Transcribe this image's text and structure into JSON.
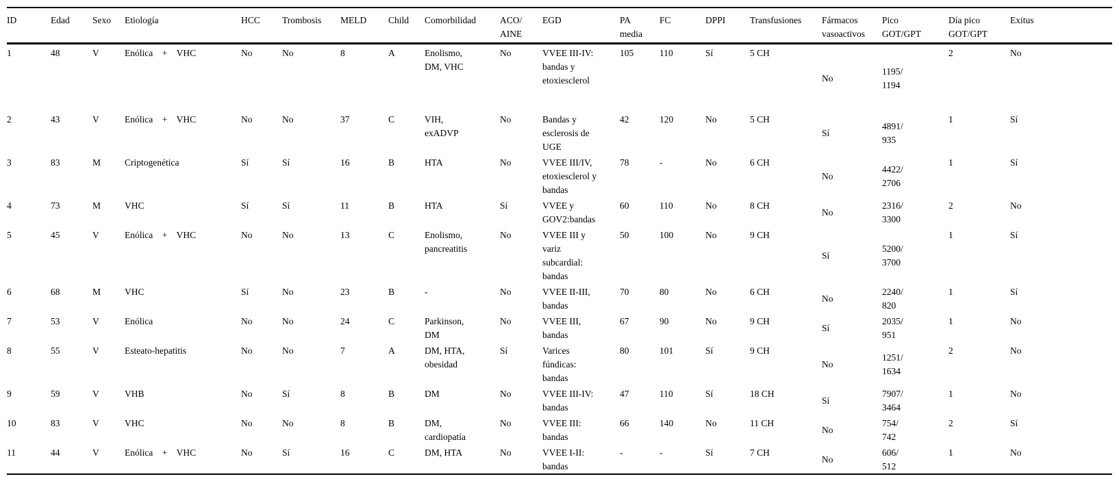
{
  "table": {
    "columns": [
      {
        "key": "id",
        "label": "ID"
      },
      {
        "key": "edad",
        "label": "Edad"
      },
      {
        "key": "sexo",
        "label": "Sexo"
      },
      {
        "key": "etiologia",
        "label": "Etiología"
      },
      {
        "key": "hcc",
        "label": "HCC"
      },
      {
        "key": "trombosis",
        "label": "Trombosis"
      },
      {
        "key": "meld",
        "label": "MELD"
      },
      {
        "key": "child",
        "label": "Child"
      },
      {
        "key": "comorbilidad",
        "label": "Comorbilidad"
      },
      {
        "key": "aco_aine",
        "label": "ACO/\nAINE"
      },
      {
        "key": "egd",
        "label": "EGD"
      },
      {
        "key": "pa_media",
        "label": "PA\nmedia"
      },
      {
        "key": "fc",
        "label": "FC"
      },
      {
        "key": "dppi",
        "label": "DPPI"
      },
      {
        "key": "transfusiones",
        "label": "Transfusiones"
      },
      {
        "key": "farmacos_vasoactivos",
        "label": "Fármacos\nvasoactivos"
      },
      {
        "key": "pico_got_gpt",
        "label": "Pico\nGOT/GPT"
      },
      {
        "key": "dia_pico_got_gpt",
        "label": "Día pico\nGOT/GPT"
      },
      {
        "key": "exitus",
        "label": "Exitus"
      }
    ],
    "rows": [
      [
        "1",
        "48",
        "V",
        "Enólica    +    VHC",
        "No",
        "No",
        "8",
        "A",
        "Enolismo,\nDM, VHC",
        "No",
        "VVEE III-IV:\nbandas y\netoxiesclerol",
        "105",
        "110",
        "Sí",
        "5 CH",
        "No",
        "1195/\n1194",
        "2",
        "No"
      ],
      [
        "2",
        "43",
        "V",
        "Enólica    +    VHC",
        "No",
        "No",
        "37",
        "C",
        "VIH,\nexADVP",
        "No",
        "Bandas y\nesclerosis de\nUGE",
        "42",
        "120",
        "No",
        "5 CH",
        "Sí",
        "4891/\n935",
        "1",
        "Sí"
      ],
      [
        "3",
        "83",
        "M",
        "Criptogenética",
        "Sí",
        "Sí",
        "16",
        "B",
        "HTA",
        "No",
        "VVEE III/IV,\netoxiesclerol y\nbandas",
        "78",
        "-",
        "No",
        "6 CH",
        "No",
        "4422/\n2706",
        "1",
        "Sí"
      ],
      [
        "4",
        "73",
        "M",
        "VHC",
        "Sí",
        "Sí",
        "11",
        "B",
        "HTA",
        "Sí",
        "VVEE y\nGOV2:bandas",
        "60",
        "110",
        "No",
        "8 CH",
        "No",
        "2316/\n3300",
        "2",
        "No"
      ],
      [
        "5",
        "45",
        "V",
        "Enólica    +    VHC",
        "No",
        "No",
        "13",
        "C",
        "Enolismo,\npancreatitis",
        "No",
        "VVEE III y\nvariz\nsubcardial:\nbandas",
        "50",
        "100",
        "No",
        "9 CH",
        "Sí",
        "5200/\n3700",
        "1",
        "Sí"
      ],
      [
        "6",
        "68",
        "M",
        "VHC",
        "Sí",
        "No",
        "23",
        "B",
        "-",
        "No",
        "VVEE II-III,\nbandas",
        "70",
        "80",
        "No",
        "6 CH",
        "No",
        "2240/\n820",
        "1",
        "Sí"
      ],
      [
        "7",
        "53",
        "V",
        "Enólica",
        "No",
        "No",
        "24",
        "C",
        "Parkinson,\nDM",
        "No",
        "VVEE III,\nbandas",
        "67",
        "90",
        "No",
        "9 CH",
        "Sí",
        "2035/\n951",
        "1",
        "No"
      ],
      [
        "8",
        "55",
        "V",
        "Esteato-hepatitis",
        "No",
        "No",
        "7",
        "A",
        "DM, HTA,\nobesidad",
        "Sí",
        "Varices\nfúndicas:\nbandas",
        "80",
        "101",
        "Sí",
        "9 CH",
        "No",
        "1251/\n1634",
        "2",
        "No"
      ],
      [
        "9",
        "59",
        "V",
        "VHB",
        "No",
        "Sí",
        "8",
        "B",
        "DM",
        "No",
        "VVEE III-IV:\nbandas",
        "47",
        "110",
        "Sí",
        "18 CH",
        "Sí",
        "7907/\n3464",
        "1",
        "No"
      ],
      [
        "10",
        "83",
        "V",
        "VHC",
        "No",
        "No",
        "8",
        "B",
        "DM,\ncardiopatía",
        "No",
        "VVEE III:\nbandas",
        "66",
        "140",
        "No",
        "11 CH",
        "No",
        "754/\n742",
        "2",
        "Sí"
      ],
      [
        "11",
        "44",
        "V",
        "Enólica    +    VHC",
        "No",
        "Sí",
        "16",
        "C",
        "DM, HTA",
        "No",
        "VVEE I-II:\nbandas",
        "-",
        "-",
        "Sí",
        "7 CH",
        "No",
        "606/\n512",
        "1",
        "No"
      ]
    ]
  }
}
